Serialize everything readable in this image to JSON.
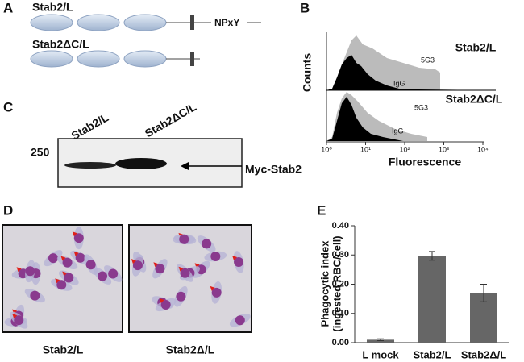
{
  "panels": {
    "A": {
      "label": "A",
      "constructs": [
        {
          "name": "Stab2/L",
          "motif": "NPxY"
        },
        {
          "name": "Stab2ΔC/L"
        }
      ]
    },
    "B": {
      "label": "B",
      "ylabel": "Counts",
      "xlabel": "Fluorescence",
      "xticks": [
        "10⁰",
        "10¹",
        "10²",
        "10³",
        "10⁴"
      ],
      "samples": [
        "Stab2/L",
        "Stab2ΔC/L"
      ],
      "trace_labels": [
        "5G3",
        "IgG",
        "5G3",
        "IgG"
      ]
    },
    "C": {
      "label": "C",
      "lanes": [
        "Stab2/L",
        "Stab2ΔC/L"
      ],
      "marker": "250",
      "band_label": "Myc-Stab2"
    },
    "D": {
      "label": "D",
      "captions": [
        "Stab2/L",
        "Stab2Δ/L"
      ]
    },
    "E": {
      "label": "E"
    }
  },
  "chart_data": {
    "type": "bar",
    "ylabel": [
      "Phagocytic index",
      "(ingested RBC/cell)"
    ],
    "categories": [
      "L mock",
      "Stab2/L",
      "Stab2Δ/L"
    ],
    "values": [
      0.01,
      0.297,
      0.17
    ],
    "errors": [
      0.003,
      0.015,
      0.03
    ],
    "color": "#666666",
    "ylim": [
      0,
      0.4
    ],
    "yticks": [
      {
        "value": 0,
        "label": "0.00"
      },
      {
        "value": 0.1,
        "label": "0.10"
      },
      {
        "value": 0.2,
        "label": "0.20"
      },
      {
        "value": 0.3,
        "label": "0.30"
      },
      {
        "value": 0.4,
        "label": "0.40"
      }
    ]
  }
}
